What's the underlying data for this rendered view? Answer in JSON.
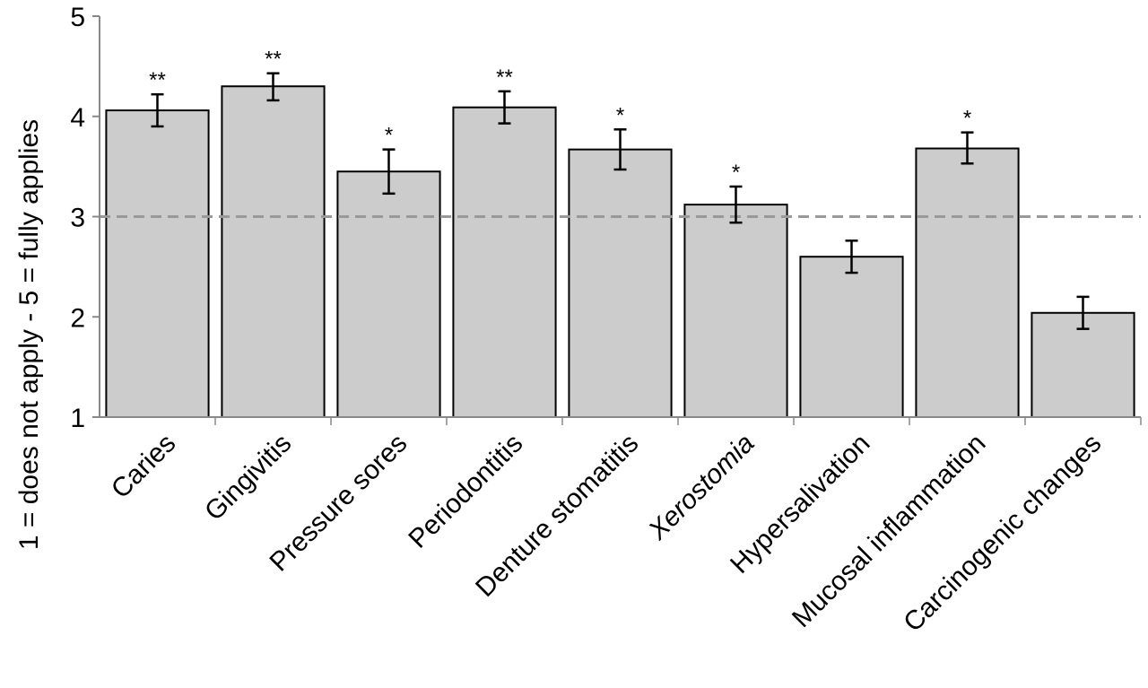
{
  "chart_data": {
    "type": "bar",
    "title": "",
    "xlabel": "",
    "ylabel": "1 = does not apply - 5 = fully applies",
    "ylim": [
      1,
      5
    ],
    "yticks": [
      1,
      2,
      3,
      4,
      5
    ],
    "grid": false,
    "reference_line": {
      "value": 3,
      "style": "dashed",
      "color": "#999999"
    },
    "bar_color": "#cccccc",
    "categories": [
      "Caries",
      "Gingivitis",
      "Pressure sores",
      "Periodontitis",
      "Denture stomatitis",
      "Xerostomia",
      "Hypersalivation",
      "Mucosal inflammation",
      "Carcinogenic changes"
    ],
    "italic_categories": [
      "Xerostomia"
    ],
    "values": [
      4.06,
      4.3,
      3.45,
      4.09,
      3.67,
      3.12,
      2.6,
      3.68,
      2.04
    ],
    "error_low": [
      3.9,
      4.16,
      3.23,
      3.93,
      3.47,
      2.94,
      2.44,
      3.53,
      1.88
    ],
    "error_high": [
      4.22,
      4.43,
      3.67,
      4.25,
      3.87,
      3.3,
      2.76,
      3.84,
      2.2
    ],
    "significance": [
      "**",
      "**",
      "*",
      "**",
      "*",
      "*",
      "",
      "*",
      ""
    ]
  }
}
